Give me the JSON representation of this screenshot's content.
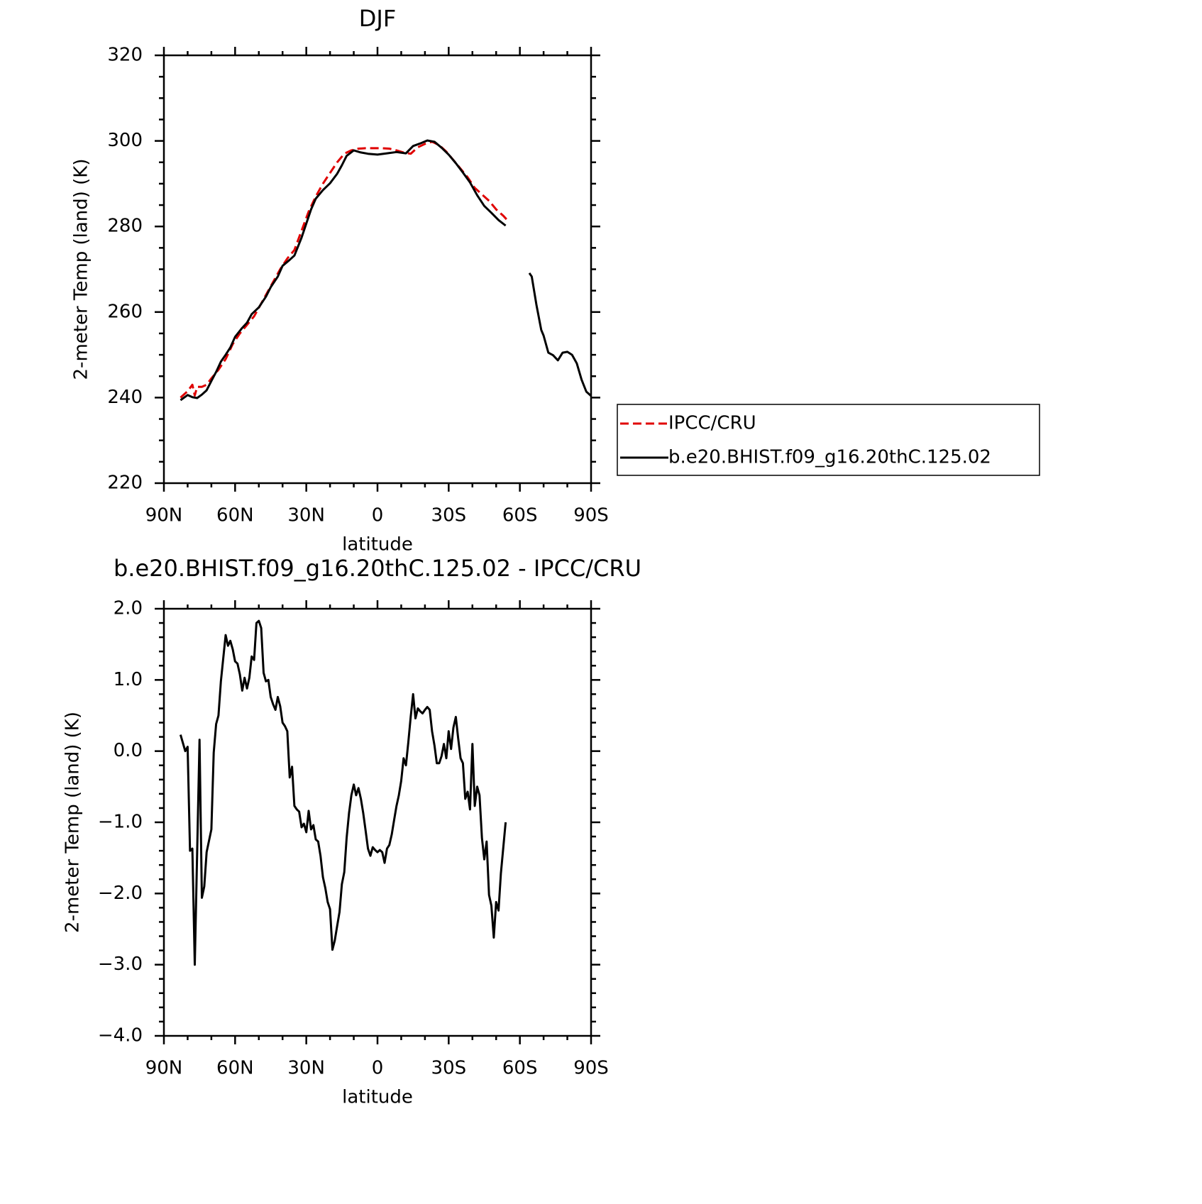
{
  "chart_data": [
    {
      "type": "line",
      "title": "DJF",
      "xlabel": "latitude",
      "ylabel": "2-meter Temp (land) (K)",
      "xlim": [
        90,
        -90
      ],
      "xticks": [
        {
          "value": 90,
          "label": "90N"
        },
        {
          "value": 60,
          "label": "60N"
        },
        {
          "value": 30,
          "label": "30N"
        },
        0,
        {
          "value": -30,
          "label": "30S"
        },
        {
          "value": -60,
          "label": "60S"
        },
        {
          "value": -90,
          "label": "90S"
        }
      ],
      "xminorticks": [
        80,
        70,
        50,
        40,
        20,
        10,
        -10,
        -20,
        -40,
        -50,
        -70,
        -80
      ],
      "ylim": [
        220,
        320
      ],
      "yticks": [
        220,
        240,
        260,
        280,
        300,
        320
      ],
      "yminorticks": [
        225,
        230,
        235,
        245,
        250,
        255,
        265,
        270,
        275,
        285,
        290,
        295,
        305,
        310,
        315
      ],
      "legend": "right",
      "series": [
        {
          "name": "IPCC/CRU",
          "color": "#e00000",
          "dash": true,
          "x": [
            83,
            80,
            78,
            77,
            76,
            74,
            72,
            70,
            67,
            64,
            61,
            58,
            55,
            52,
            50,
            47,
            44,
            41,
            38,
            35,
            32,
            29,
            26,
            23,
            20,
            17,
            14,
            11,
            8,
            5,
            2,
            -2,
            -5,
            -8,
            -11,
            -14,
            -17,
            -20,
            -23,
            -26,
            -29,
            -32,
            -35,
            -38,
            -41,
            -44,
            -47,
            -50,
            -53,
            -55.5
          ],
          "values": [
            240.0,
            241.5,
            243.0,
            240.5,
            242.5,
            242.5,
            243.0,
            244.5,
            246.5,
            249.0,
            252.5,
            255.0,
            257.0,
            259.0,
            261.0,
            264.0,
            267.0,
            270.0,
            272.5,
            274.5,
            279.0,
            283.5,
            287.0,
            290.0,
            292.5,
            295.0,
            297.0,
            297.8,
            298.2,
            298.3,
            298.3,
            298.3,
            298.2,
            297.8,
            297.3,
            297.0,
            298.5,
            299.3,
            299.8,
            299.0,
            297.5,
            295.5,
            293.5,
            291.5,
            289.0,
            287.5,
            286.0,
            284.0,
            282.5,
            281.0
          ]
        },
        {
          "name": "b.e20.BHIST.f09_g16.20thC.125.02",
          "color": "#000000",
          "dash": false,
          "x": [
            83,
            80,
            78,
            76,
            74,
            72,
            70,
            68,
            66,
            64,
            62,
            60,
            57,
            55,
            53,
            50,
            47,
            45,
            42,
            40,
            37,
            35,
            32,
            30,
            28,
            26,
            23,
            20,
            17,
            15,
            13,
            10,
            7,
            4,
            0,
            -4,
            -8,
            -12,
            -15,
            -18,
            -21,
            -24,
            -27,
            -30,
            -33,
            -36,
            -39,
            -42,
            -45,
            -48,
            -51,
            -54,
            -59,
            -64,
            -65,
            -67,
            -69,
            -70,
            -72,
            -74,
            -76,
            -78,
            -80,
            -82,
            -84,
            -86,
            -88,
            -90
          ],
          "values": [
            239.4,
            240.6,
            240.1,
            239.9,
            240.7,
            241.7,
            243.9,
            246.0,
            248.4,
            250.0,
            251.7,
            254.2,
            256.3,
            257.5,
            259.5,
            261.1,
            263.6,
            265.8,
            268.3,
            270.8,
            272.2,
            273.2,
            277.4,
            280.7,
            284.0,
            286.5,
            288.5,
            290.1,
            292.3,
            294.3,
            296.5,
            297.8,
            297.3,
            297.0,
            296.8,
            297.1,
            297.4,
            297.1,
            298.8,
            299.4,
            300.1,
            299.8,
            298.4,
            296.8,
            294.8,
            292.6,
            290.3,
            287.3,
            284.8,
            283.2,
            281.5,
            280.2,
            null,
            269.1,
            268.3,
            261.6,
            255.8,
            254.5,
            250.5,
            249.9,
            248.7,
            250.5,
            250.7,
            250.0,
            248.0,
            244.2,
            241.4,
            240.4
          ]
        }
      ]
    },
    {
      "type": "line",
      "title": "b.e20.BHIST.f09_g16.20thC.125.02 - IPCC/CRU",
      "xlabel": "latitude",
      "ylabel": "2-meter Temp (land) (K)",
      "xlim": [
        90,
        -90
      ],
      "xticks": [
        {
          "value": 90,
          "label": "90N"
        },
        {
          "value": 60,
          "label": "60N"
        },
        {
          "value": 30,
          "label": "30N"
        },
        0,
        {
          "value": -30,
          "label": "30S"
        },
        {
          "value": -60,
          "label": "60S"
        },
        {
          "value": -90,
          "label": "90S"
        }
      ],
      "xminorticks": [
        80,
        70,
        50,
        40,
        20,
        10,
        -10,
        -20,
        -40,
        -50,
        -70,
        -80
      ],
      "ylim": [
        -4,
        2
      ],
      "yticks": [
        {
          "value": -4,
          "label": "−4.0"
        },
        {
          "value": -3,
          "label": "−3.0"
        },
        {
          "value": -2,
          "label": "−2.0"
        },
        {
          "value": -1,
          "label": "−1.0"
        },
        {
          "value": 0,
          "label": "0.0"
        },
        {
          "value": 1,
          "label": "1.0"
        },
        {
          "value": 2,
          "label": "2.0"
        }
      ],
      "yminorticks": [
        -3.8,
        -3.6,
        -3.4,
        -3.2,
        -2.8,
        -2.6,
        -2.4,
        -2.2,
        -1.8,
        -1.6,
        -1.4,
        -1.2,
        -0.8,
        -0.6,
        -0.4,
        -0.2,
        0.2,
        0.4,
        0.6,
        0.8,
        1.2,
        1.4,
        1.6,
        1.8
      ],
      "series": [
        {
          "color": "#000000",
          "dash": false,
          "x": [
            83,
            81,
            80,
            79,
            78,
            77,
            75,
            74,
            73,
            72,
            70,
            69,
            68,
            67,
            66,
            64,
            63,
            62,
            61,
            60,
            59,
            58,
            57,
            56,
            55,
            54,
            53,
            52,
            51,
            50,
            49,
            48,
            47,
            46,
            45,
            44,
            43,
            42,
            41,
            40,
            39,
            38,
            37,
            36,
            35,
            34,
            33,
            32,
            31,
            30,
            29,
            28,
            27,
            26,
            25,
            24,
            23,
            22,
            21,
            20,
            19,
            18,
            17,
            16,
            15,
            14,
            13,
            12,
            11,
            10,
            9,
            8,
            7,
            6,
            5,
            4,
            3,
            2,
            1,
            0,
            -1,
            -2,
            -3,
            -4,
            -5,
            -6,
            -7,
            -8,
            -9,
            -10,
            -11,
            -12,
            -13,
            -14,
            -15,
            -16,
            -17,
            -18,
            -19,
            -20,
            -21,
            -22,
            -23,
            -24,
            -25,
            -26,
            -27,
            -28,
            -29,
            -30,
            -31,
            -32,
            -33,
            -34,
            -35,
            -36,
            -37,
            -38,
            -39,
            -40,
            -41,
            -42,
            -43,
            -44,
            -45,
            -46,
            -47,
            -48,
            -49,
            -50,
            -51,
            -52,
            -54
          ],
          "values": [
            0.23,
            0.0,
            0.06,
            -1.4,
            -1.37,
            -3.0,
            0.16,
            -2.06,
            -1.9,
            -1.42,
            -1.1,
            -0.02,
            0.38,
            0.5,
            0.98,
            1.63,
            1.48,
            1.55,
            1.43,
            1.26,
            1.23,
            1.08,
            0.85,
            1.03,
            0.88,
            1.03,
            1.33,
            1.28,
            1.8,
            1.83,
            1.73,
            1.1,
            0.98,
            1.0,
            0.76,
            0.66,
            0.58,
            0.76,
            0.63,
            0.4,
            0.35,
            0.28,
            -0.37,
            -0.22,
            -0.77,
            -0.82,
            -0.85,
            -1.07,
            -1.02,
            -1.14,
            -0.84,
            -1.1,
            -1.04,
            -1.24,
            -1.27,
            -1.47,
            -1.77,
            -1.92,
            -2.12,
            -2.22,
            -2.79,
            -2.66,
            -2.46,
            -2.26,
            -1.87,
            -1.7,
            -1.22,
            -0.87,
            -0.62,
            -0.47,
            -0.62,
            -0.52,
            -0.67,
            -0.87,
            -1.12,
            -1.37,
            -1.47,
            -1.35,
            -1.39,
            -1.42,
            -1.39,
            -1.42,
            -1.57,
            -1.37,
            -1.32,
            -1.17,
            -0.97,
            -0.77,
            -0.62,
            -0.42,
            -0.1,
            -0.2,
            0.13,
            0.48,
            0.8,
            0.46,
            0.6,
            0.56,
            0.53,
            0.58,
            0.62,
            0.58,
            0.28,
            0.08,
            -0.17,
            -0.17,
            -0.07,
            0.1,
            -0.1,
            0.28,
            0.03,
            0.33,
            0.48,
            0.18,
            -0.1,
            -0.17,
            -0.67,
            -0.57,
            -0.82,
            0.1,
            -0.77,
            -0.5,
            -0.62,
            -1.22,
            -1.52,
            -1.27,
            -2.02,
            -2.17,
            -2.62,
            -2.12,
            -2.24,
            -1.72,
            -1.0
          ]
        }
      ]
    }
  ]
}
